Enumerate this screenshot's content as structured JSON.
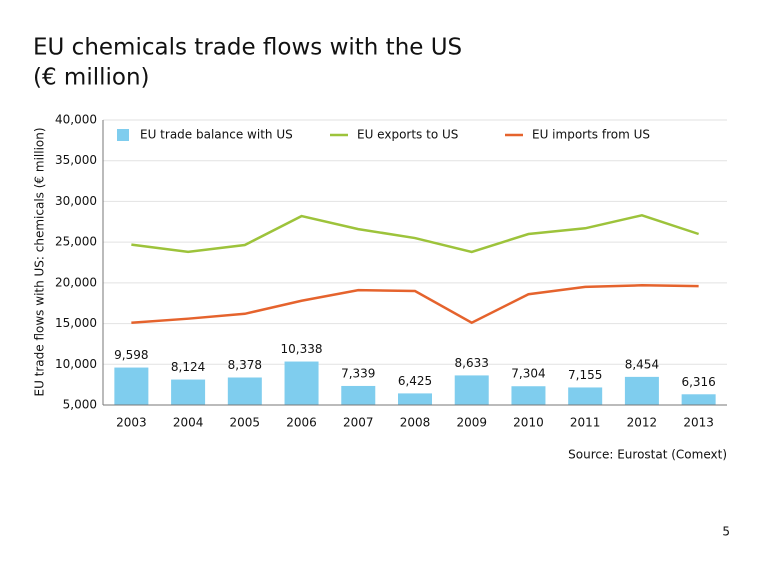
{
  "chart_data": {
    "type": "combo",
    "title": "EU chemicals trade flows with the US",
    "subtitle": "(€ million)",
    "y_label": "EU trade flows with US: chemicals (€ million)",
    "source": "Source: Eurostat (Comext)",
    "page_number": 5,
    "categories": [
      "2003",
      "2004",
      "2005",
      "2006",
      "2007",
      "2008",
      "2009",
      "2010",
      "2011",
      "2012",
      "2013"
    ],
    "series": [
      {
        "name": "EU trade balance with US",
        "type": "bar",
        "color": "#7fcdee",
        "values": [
          9598,
          8124,
          8378,
          10338,
          7339,
          6425,
          8633,
          7304,
          7155,
          8454,
          6316
        ],
        "value_labels": [
          "9,598",
          "8,124",
          "8,378",
          "10,338",
          "7,339",
          "6,425",
          "8,633",
          "7,304",
          "7,155",
          "8,454",
          "6,316"
        ]
      },
      {
        "name": "EU exports to US",
        "type": "line",
        "color": "#9dc33b",
        "values": [
          24700,
          23800,
          24650,
          28200,
          26600,
          25500,
          23800,
          26000,
          26700,
          28300,
          26000
        ]
      },
      {
        "name": "EU imports from US",
        "type": "line",
        "color": "#e5632d",
        "values": [
          15100,
          15600,
          16200,
          17800,
          19100,
          19000,
          15100,
          18600,
          19500,
          19700,
          19600
        ]
      }
    ],
    "ylim": [
      5000,
      40000
    ],
    "yticks": [
      {
        "value": 5000,
        "label": "5,000"
      },
      {
        "value": 10000,
        "label": "10,000"
      },
      {
        "value": 15000,
        "label": "15,000"
      },
      {
        "value": 20000,
        "label": "20,000"
      },
      {
        "value": 25000,
        "label": "25,000"
      },
      {
        "value": 30000,
        "label": "30,000"
      },
      {
        "value": 35000,
        "label": "35,000"
      },
      {
        "value": 40000,
        "label": "40,000"
      }
    ],
    "grid": true,
    "legend": "top"
  }
}
